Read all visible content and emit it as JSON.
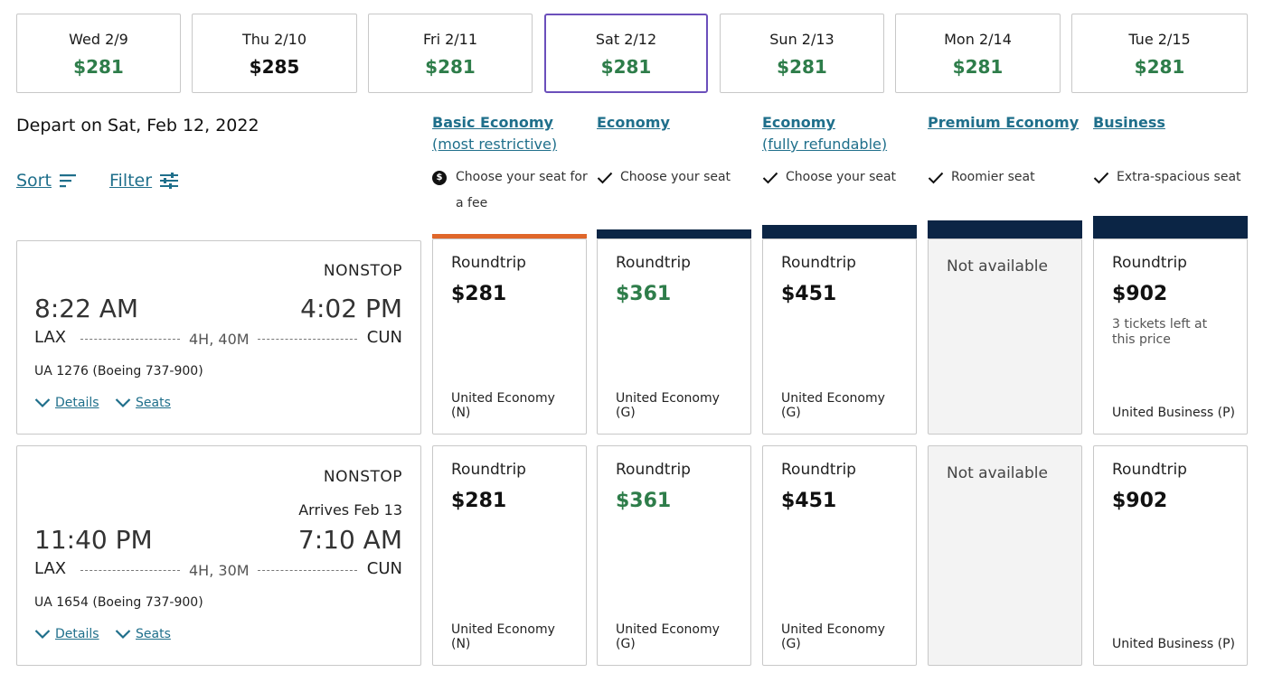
{
  "dates": [
    {
      "label": "Wed 2/9",
      "price": "$281"
    },
    {
      "label": "Thu 2/10",
      "price": "$285"
    },
    {
      "label": "Fri 2/11",
      "price": "$281"
    },
    {
      "label": "Sat 2/12",
      "price": "$281"
    },
    {
      "label": "Sun 2/13",
      "price": "$281"
    },
    {
      "label": "Mon 2/14",
      "price": "$281"
    },
    {
      "label": "Tue 2/15",
      "price": "$281"
    }
  ],
  "header": {
    "depart_title": "Depart on Sat, Feb 12, 2022",
    "sort_label": "Sort",
    "filter_label": "Filter"
  },
  "columns": [
    {
      "title": "Basic Economy",
      "subtitle": "(most restrictive)",
      "feature": "Choose your seat for a fee",
      "bar_color": "#e0672a"
    },
    {
      "title": "Economy",
      "subtitle": "",
      "feature": "Choose your seat",
      "bar_color": "#0b2545"
    },
    {
      "title": "Economy",
      "subtitle": "(fully refundable)",
      "feature": "Choose your seat",
      "bar_color": "#0b2545"
    },
    {
      "title": "Premium Economy",
      "subtitle": "",
      "feature": "Roomier seat",
      "bar_color": "#0b2545"
    },
    {
      "title": "Business",
      "subtitle": "",
      "feature": "Extra-spacious seat",
      "bar_color": "#0b2545"
    }
  ],
  "flights": [
    {
      "stops": "NONSTOP",
      "arrives": "",
      "depart_time": "8:22 AM",
      "arrive_time": "4:02 PM",
      "origin": "LAX",
      "destination": "CUN",
      "duration": "4H, 40M",
      "flight_number": "UA 1276 (Boeing 737-900)",
      "details_label": "Details",
      "seats_label": "Seats",
      "fares": [
        {
          "label": "Roundtrip",
          "price": "$281",
          "cabin": "United Economy (N)"
        },
        {
          "label": "Roundtrip",
          "price": "$361",
          "cabin": "United Economy (G)"
        },
        {
          "label": "Roundtrip",
          "price": "$451",
          "cabin": "United Economy (G)"
        },
        {
          "unavailable": "Not available"
        },
        {
          "label": "Roundtrip",
          "price": "$902",
          "cabin": "United Business (P)",
          "note": "3 tickets left at this price"
        }
      ]
    },
    {
      "stops": "NONSTOP",
      "arrives": "Arrives Feb 13",
      "depart_time": "11:40 PM",
      "arrive_time": "7:10 AM",
      "origin": "LAX",
      "destination": "CUN",
      "duration": "4H, 30M",
      "flight_number": "UA 1654 (Boeing 737-900)",
      "details_label": "Details",
      "seats_label": "Seats",
      "fares": [
        {
          "label": "Roundtrip",
          "price": "$281",
          "cabin": "United Economy (N)"
        },
        {
          "label": "Roundtrip",
          "price": "$361",
          "cabin": "United Economy (G)"
        },
        {
          "label": "Roundtrip",
          "price": "$451",
          "cabin": "United Economy (G)"
        },
        {
          "unavailable": "Not available"
        },
        {
          "label": "Roundtrip",
          "price": "$902",
          "cabin": "United Business (P)"
        }
      ]
    }
  ],
  "colors": {
    "accent_green": "#2e7d4a",
    "link_blue": "#1f6f8b",
    "selected_outline": "#6b4fbb",
    "navy": "#0b2545",
    "orange": "#e0672a"
  }
}
